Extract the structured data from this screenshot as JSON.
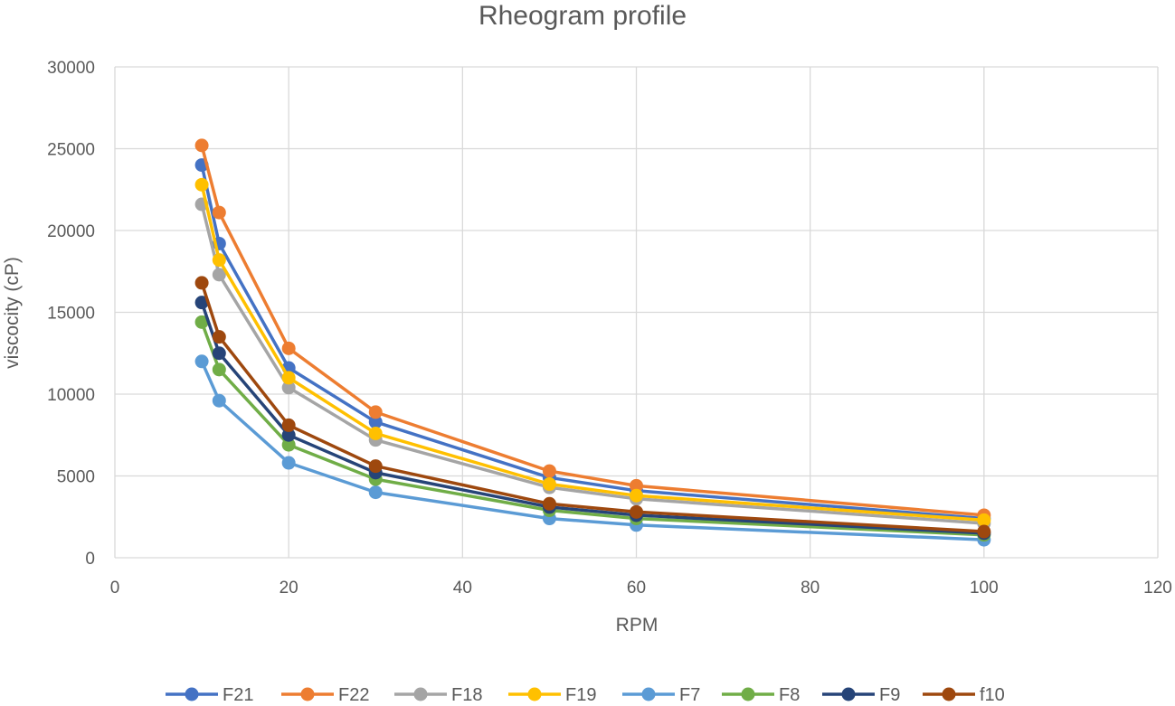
{
  "chart_data": {
    "type": "line",
    "title": "Rheogram profile",
    "xlabel": "RPM",
    "ylabel": "viscocity (cP)",
    "xlim": [
      0,
      120
    ],
    "ylim": [
      0,
      30000
    ],
    "xticks": [
      0,
      20,
      40,
      60,
      80,
      100,
      120
    ],
    "yticks": [
      0,
      5000,
      10000,
      15000,
      20000,
      25000,
      30000
    ],
    "grid": true,
    "legend_position": "bottom",
    "x": [
      10,
      12,
      20,
      30,
      50,
      60,
      100
    ],
    "series": [
      {
        "name": "F21",
        "color": "#4472c4",
        "values": [
          24000,
          19200,
          11600,
          8300,
          4900,
          4100,
          2400
        ]
      },
      {
        "name": "F22",
        "color": "#ed7d31",
        "values": [
          25200,
          21100,
          12800,
          8900,
          5300,
          4400,
          2600
        ]
      },
      {
        "name": "F18",
        "color": "#a5a5a5",
        "values": [
          21600,
          17300,
          10400,
          7200,
          4300,
          3600,
          2100
        ]
      },
      {
        "name": "F19",
        "color": "#ffc000",
        "values": [
          22800,
          18200,
          11000,
          7600,
          4500,
          3800,
          2300
        ]
      },
      {
        "name": "F7",
        "color": "#5b9bd5",
        "values": [
          12000,
          9600,
          5800,
          4000,
          2400,
          2000,
          1100
        ]
      },
      {
        "name": "F8",
        "color": "#70ad47",
        "values": [
          14400,
          11500,
          6900,
          4800,
          2900,
          2400,
          1400
        ]
      },
      {
        "name": "F9",
        "color": "#264478",
        "values": [
          15600,
          12500,
          7500,
          5200,
          3100,
          2600,
          1500
        ]
      },
      {
        "name": "f10",
        "color": "#9e480e",
        "values": [
          16800,
          13500,
          8100,
          5600,
          3300,
          2800,
          1600
        ]
      }
    ]
  }
}
